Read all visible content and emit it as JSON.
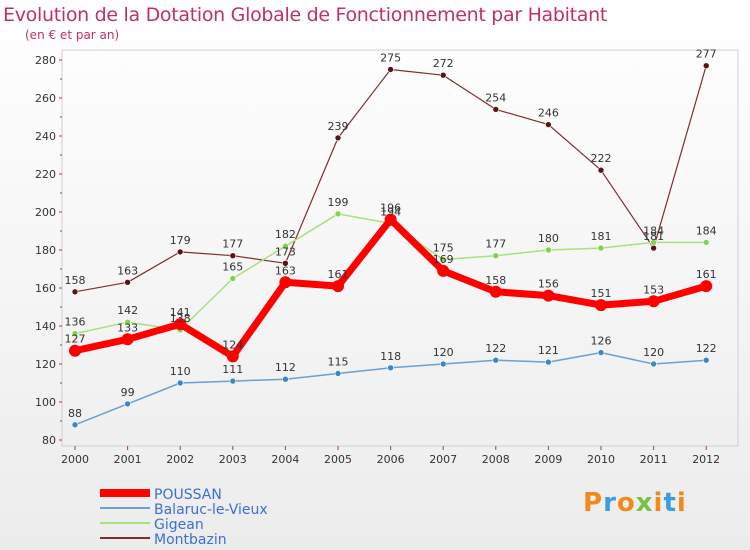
{
  "title": "Evolution de la Dotation Globale de Fonctionnement par Habitant",
  "subtitle": "(en € et par an)",
  "logo": {
    "text": "Proxiti"
  },
  "colors": {
    "POUSSAN": "#ff0000",
    "Balaruc-le-Vieux": "#6aa0d2",
    "Gigean": "#a6e27e",
    "Montbazin": "#7d2f2f",
    "markerBalaruc": "#3a86c8",
    "markerGigean": "#7fd34e",
    "markerMontbazin": "#5a1414",
    "legendText": "#3d6fd0",
    "title": "#c0306a"
  },
  "chart_data": {
    "type": "line",
    "title": "Evolution de la Dotation Globale de Fonctionnement par Habitant",
    "subtitle": "(en € et par an)",
    "x": [
      "2000",
      "2001",
      "2002",
      "2003",
      "2004",
      "2005",
      "2006",
      "2007",
      "2008",
      "2009",
      "2010",
      "2011",
      "2012"
    ],
    "ylim": [
      80,
      280
    ],
    "yticks": [
      80,
      100,
      120,
      140,
      160,
      180,
      200,
      220,
      240,
      260,
      280
    ],
    "grid": false,
    "legend": "bottom-left",
    "series": [
      {
        "name": "Montbazin",
        "values": [
          158,
          163,
          179,
          177,
          173,
          239,
          275,
          272,
          254,
          246,
          222,
          181,
          277
        ]
      },
      {
        "name": "Gigean",
        "values": [
          136,
          142,
          138,
          165,
          182,
          199,
          194,
          175,
          177,
          180,
          181,
          184,
          184
        ]
      },
      {
        "name": "Balaruc-le-Vieux",
        "values": [
          88,
          99,
          110,
          111,
          112,
          115,
          118,
          120,
          122,
          121,
          126,
          120,
          122
        ]
      },
      {
        "name": "POUSSAN",
        "values": [
          127,
          133,
          141,
          124,
          163,
          161,
          196,
          169,
          158,
          156,
          151,
          153,
          161
        ]
      }
    ]
  }
}
